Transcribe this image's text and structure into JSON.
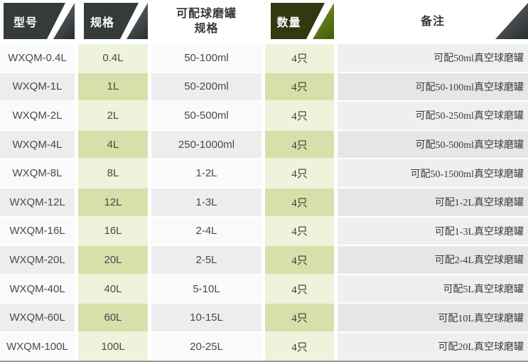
{
  "table": {
    "headers": [
      {
        "label": "型号"
      },
      {
        "label": "规格"
      },
      {
        "label": "可配球磨罐\n规格"
      },
      {
        "label": "数量"
      },
      {
        "label": "备注"
      }
    ],
    "rows": [
      {
        "model": "WXQM-0.4L",
        "spec": "0.4L",
        "jar": "50-100ml",
        "qty": "4只",
        "note": "可配50ml真空球磨罐"
      },
      {
        "model": "WXQM-1L",
        "spec": "1L",
        "jar": "50-200ml",
        "qty": "4只",
        "note": "可配50-100ml真空球磨罐"
      },
      {
        "model": "WXQM-2L",
        "spec": "2L",
        "jar": "50-500ml",
        "qty": "4只",
        "note": "可配50-250ml真空球磨罐"
      },
      {
        "model": "WXQM-4L",
        "spec": "4L",
        "jar": "250-1000ml",
        "qty": "4只",
        "note": "可配50-500ml真空球磨罐"
      },
      {
        "model": "WXQM-8L",
        "spec": "8L",
        "jar": "1-2L",
        "qty": "4只",
        "note": "可配50-1500ml真空球磨罐"
      },
      {
        "model": "WXQM-12L",
        "spec": "12L",
        "jar": "1-3L",
        "qty": "4只",
        "note": "可配1-2L真空球磨罐"
      },
      {
        "model": "WXQM-16L",
        "spec": "16L",
        "jar": "2-4L",
        "qty": "4只",
        "note": "可配1-3L真空球磨罐"
      },
      {
        "model": "WXQM-20L",
        "spec": "20L",
        "jar": "2-5L",
        "qty": "4只",
        "note": "可配2-4L真空球磨罐"
      },
      {
        "model": "WXQM-40L",
        "spec": "40L",
        "jar": "5-10L",
        "qty": "4只",
        "note": "可配5L真空球磨罐"
      },
      {
        "model": "WXQM-60L",
        "spec": "60L",
        "jar": "10-15L",
        "qty": "4只",
        "note": "可配10L真空球磨罐"
      },
      {
        "model": "WXQM-100L",
        "spec": "100L",
        "jar": "20-25L",
        "qty": "4只",
        "note": "可配20L真空球磨罐"
      }
    ]
  },
  "colors": {
    "header_dark": "#353a3b",
    "header_green": "#31390e",
    "triangle_dark_light": "#9aa0a1",
    "triangle_dark_dark": "#272c2e",
    "triangle_green_light": "#8fa832",
    "triangle_green_dark": "#3f5a0b",
    "row_white": "#fafafa",
    "row_gray": "#ededed",
    "green_light": "#eff3dc",
    "green_dark": "#d6e0aa",
    "note_light": "#efefef",
    "note_dark": "#e6e6e6",
    "text_dark": "#4a4a4a",
    "text_note": "#3c3c3c",
    "header_text_light": "#ffffff",
    "header_text_dark": "#383838",
    "bottom_line": "#9b9b9b"
  }
}
